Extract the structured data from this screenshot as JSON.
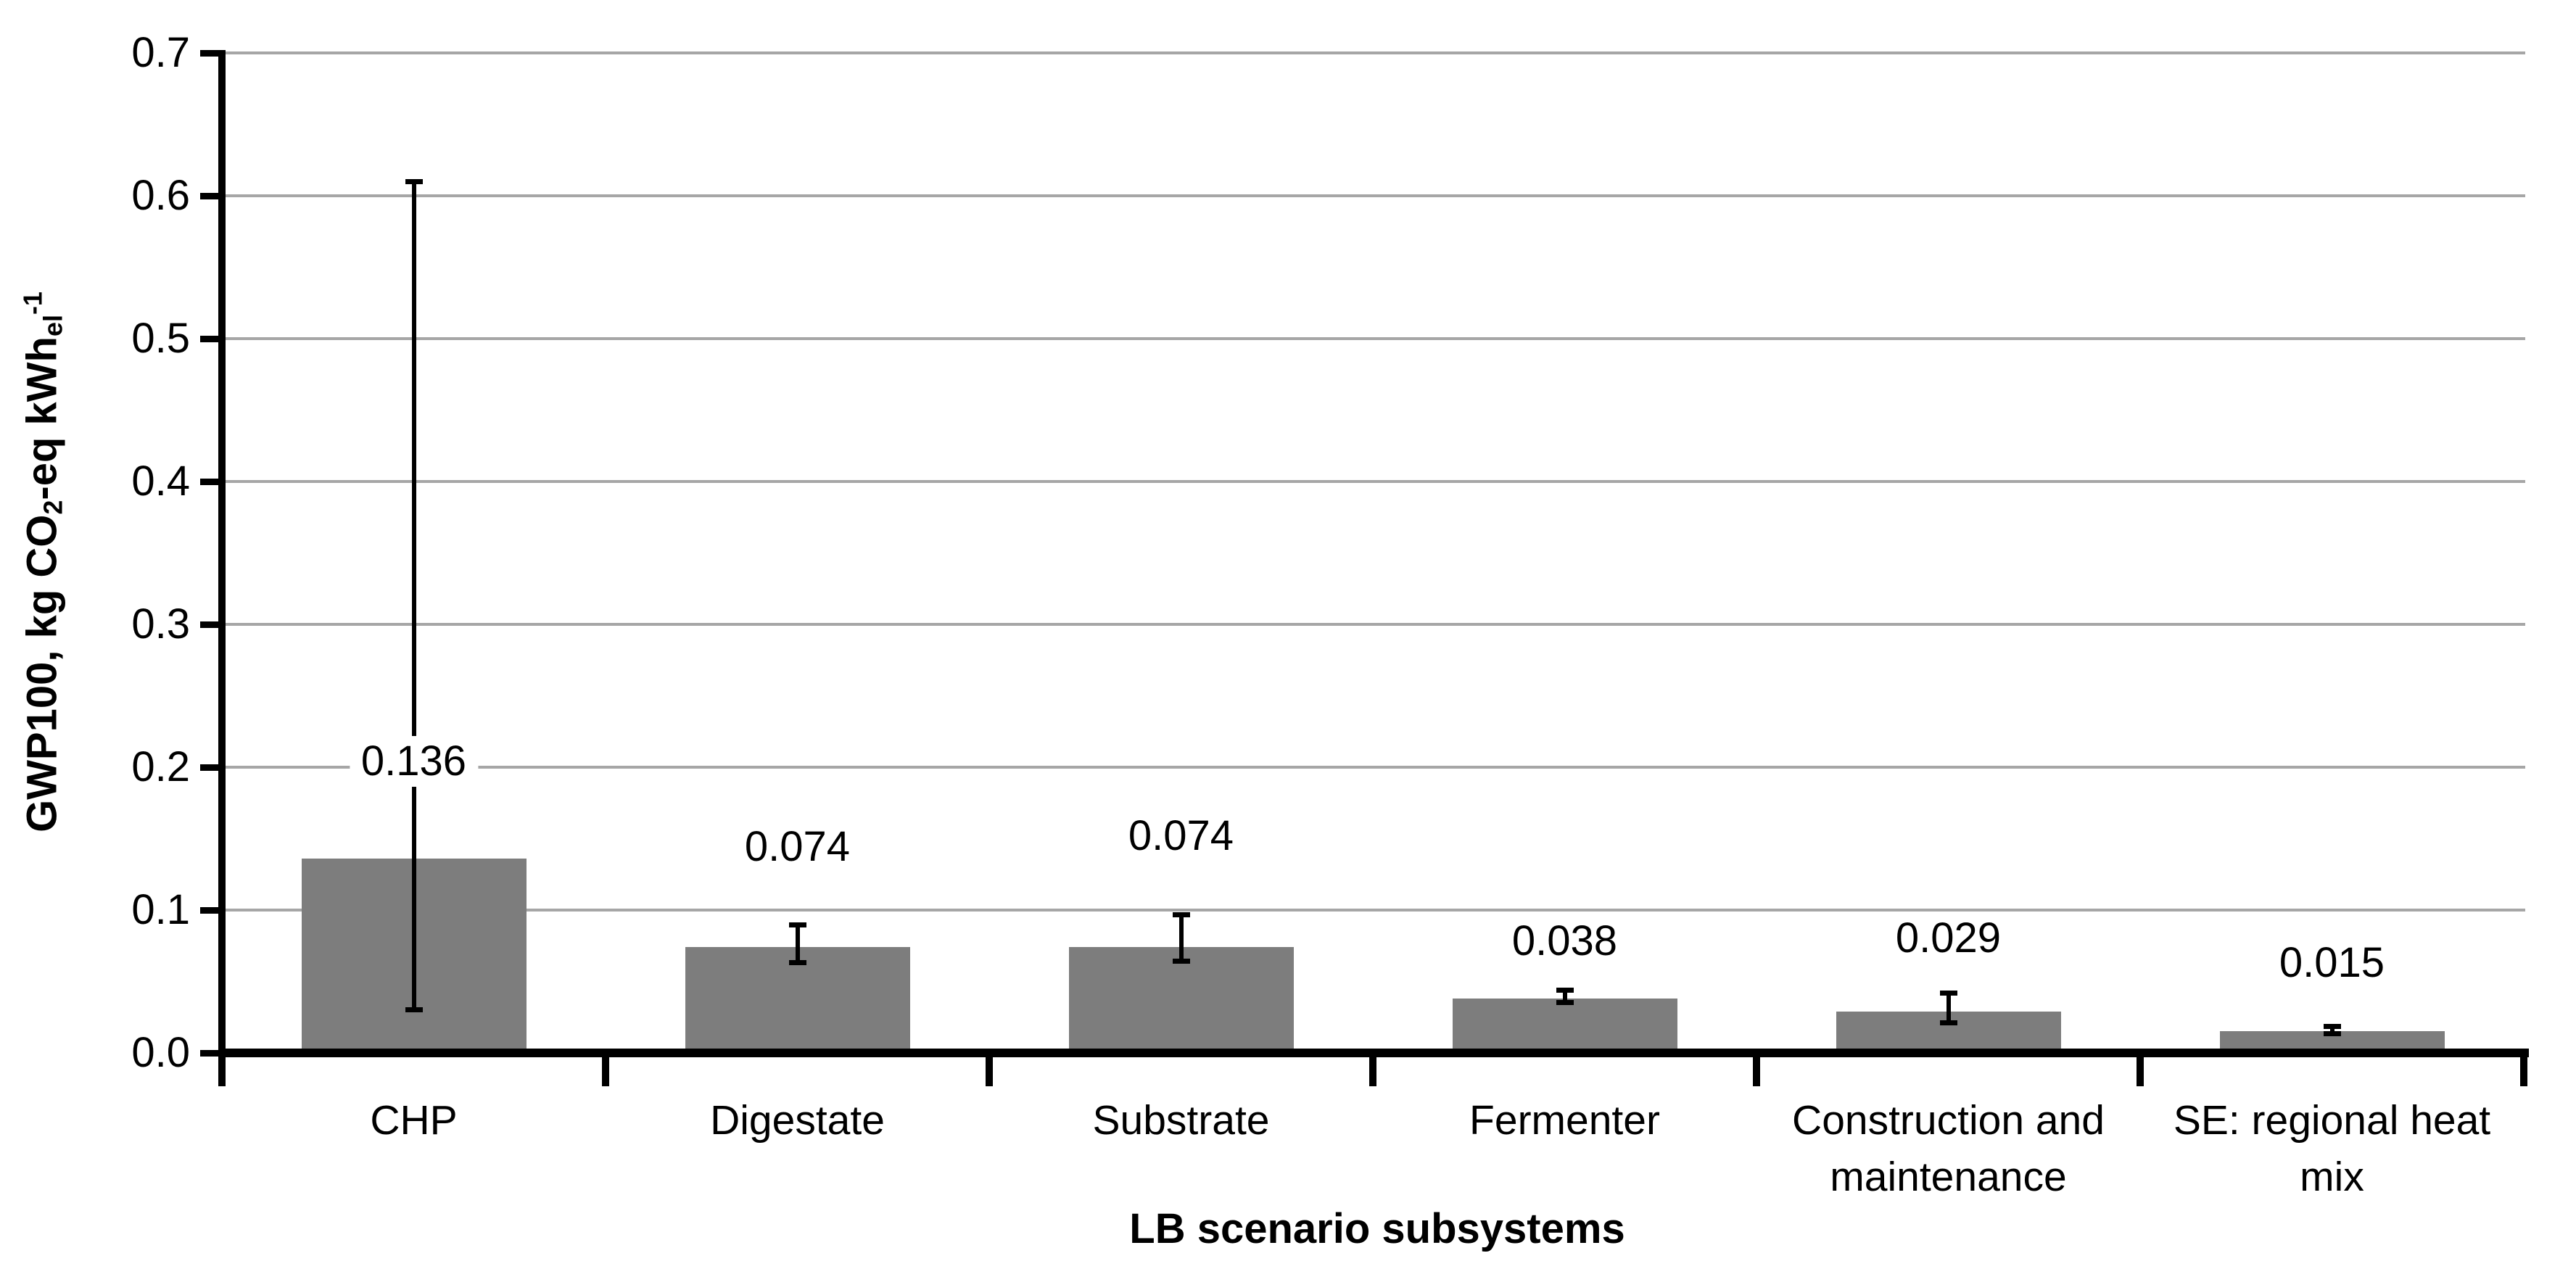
{
  "chart_data": {
    "type": "bar",
    "title": "",
    "xlabel": "LB scenario subsystems",
    "ylabel_plain": "GWP100, kg CO2-eq kWh_el^-1",
    "ylabel_parts": [
      {
        "t": "GWP100, kg CO"
      },
      {
        "t": "2",
        "s": "sub"
      },
      {
        "t": "-eq kWh"
      },
      {
        "t": "el",
        "s": "sub"
      },
      {
        "t": "-1",
        "s": "sup"
      }
    ],
    "categories": [
      "CHP",
      "Digestate",
      "Substrate",
      "Fermenter",
      "Construction and\nmaintenance",
      "SE: regional heat\nmix"
    ],
    "values": [
      0.136,
      0.074,
      0.074,
      0.038,
      0.029,
      0.015
    ],
    "data_labels": [
      "0.136",
      "0.074",
      "0.074",
      "0.038",
      "0.029",
      "0.015"
    ],
    "error_bars": [
      {
        "low": 0.03,
        "high": 0.61
      },
      {
        "low": 0.063,
        "high": 0.09
      },
      {
        "low": 0.064,
        "high": 0.097
      },
      {
        "low": 0.035,
        "high": 0.044
      },
      {
        "low": 0.021,
        "high": 0.042
      },
      {
        "low": 0.013,
        "high": 0.019
      }
    ],
    "label_positions": [
      0.204,
      0.144,
      0.152,
      0.078,
      0.08,
      0.063
    ],
    "ylim": [
      0,
      0.7
    ],
    "ytick_step": 0.1,
    "ytick_labels": [
      "0.0",
      "0.1",
      "0.2",
      "0.3",
      "0.4",
      "0.5",
      "0.6",
      "0.7"
    ],
    "grid": true,
    "legend": "none",
    "colors": {
      "bar": "#7d7d7d",
      "grid": "#a6a6a6",
      "axis": "#000000",
      "text": "#000000",
      "background": "#ffffff"
    }
  }
}
